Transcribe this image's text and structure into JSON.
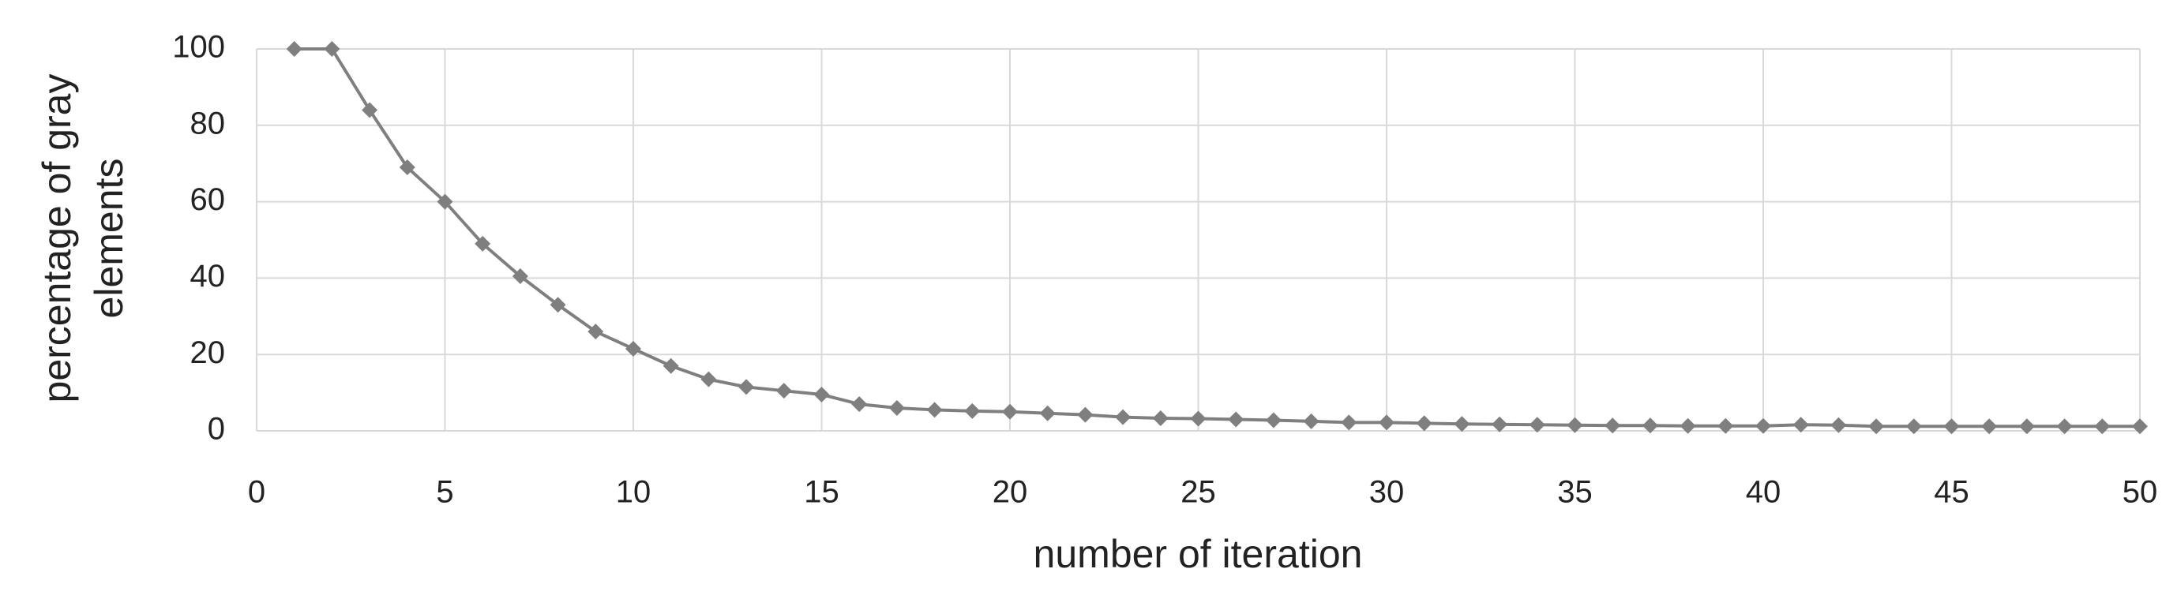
{
  "chart_data": {
    "type": "line",
    "xlabel": "number of iteration",
    "ylabel": "percentage of gray elements",
    "x": [
      1,
      2,
      3,
      4,
      5,
      6,
      7,
      8,
      9,
      10,
      11,
      12,
      13,
      14,
      15,
      16,
      17,
      18,
      19,
      20,
      21,
      22,
      23,
      24,
      25,
      26,
      27,
      28,
      29,
      30,
      31,
      32,
      33,
      34,
      35,
      36,
      37,
      38,
      39,
      40,
      41,
      42,
      43,
      44,
      45,
      46,
      47,
      48,
      49,
      50
    ],
    "series": [
      {
        "color": "#7f7f7f",
        "marker": "diamond",
        "values": [
          100,
          100,
          84,
          69,
          60,
          49,
          40.5,
          33,
          26,
          21.5,
          17,
          13.5,
          11.5,
          10.5,
          9.5,
          7,
          6,
          5.5,
          5.2,
          5,
          4.6,
          4.2,
          3.6,
          3.3,
          3.2,
          3,
          2.8,
          2.5,
          2.2,
          2.2,
          2,
          1.8,
          1.7,
          1.6,
          1.5,
          1.4,
          1.4,
          1.3,
          1.3,
          1.3,
          1.6,
          1.5,
          1.2,
          1.2,
          1.2,
          1.2,
          1.2,
          1.2,
          1.2,
          1.2
        ]
      }
    ],
    "xlim": [
      0,
      50
    ],
    "xticks": [
      0,
      5,
      10,
      15,
      20,
      25,
      30,
      35,
      40,
      45,
      50
    ],
    "ylim": [
      0,
      100
    ],
    "yticks": [
      0,
      20,
      40,
      60,
      80,
      100
    ],
    "grid": true
  }
}
